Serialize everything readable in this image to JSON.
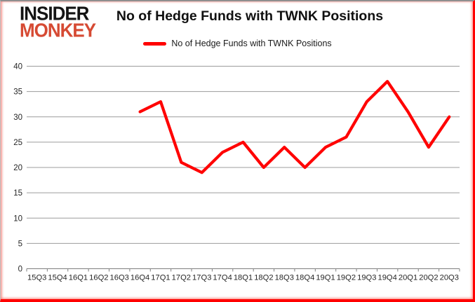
{
  "logo": {
    "line1": "INSIDER",
    "line2": "MONKEY"
  },
  "header": {
    "title": "No of Hedge Funds with TWNK Positions"
  },
  "legend": {
    "label": "No of Hedge Funds with TWNK Positions",
    "swatch_color": "#ff0000"
  },
  "chart_data": {
    "type": "line",
    "title": "No of Hedge Funds with TWNK Positions",
    "categories": [
      "15Q3",
      "15Q4",
      "16Q1",
      "16Q2",
      "16Q3",
      "16Q4",
      "17Q1",
      "17Q2",
      "17Q3",
      "17Q4",
      "18Q1",
      "18Q2",
      "18Q3",
      "18Q4",
      "19Q1",
      "19Q2",
      "19Q3",
      "19Q4",
      "20Q1",
      "20Q2",
      "20Q3"
    ],
    "series": [
      {
        "name": "No of Hedge Funds with TWNK Positions",
        "color": "#ff0000",
        "values": [
          null,
          null,
          null,
          null,
          null,
          31,
          33,
          21,
          19,
          23,
          25,
          20,
          24,
          20,
          24,
          26,
          33,
          37,
          31,
          24,
          30
        ]
      }
    ],
    "ylim": [
      0,
      40
    ],
    "ytick_step": 5,
    "grid": "horizontal",
    "gridline_color": "#9c9c9c",
    "axis_color": "#7f7f7f",
    "legend_position": "top-center"
  }
}
